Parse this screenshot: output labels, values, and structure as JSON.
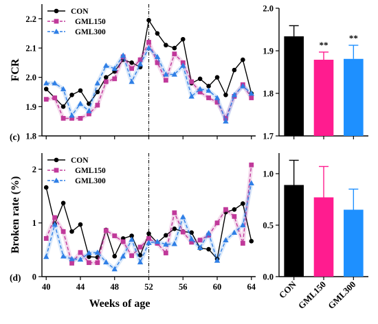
{
  "figure": {
    "x_axis_title": "Weeks of age",
    "marker_line_week": 52
  },
  "chart_data": [
    {
      "id": "fcr-line",
      "type": "line",
      "panel_label": "(c)",
      "ylabel": "FCR",
      "xlabel": "",
      "xlim": [
        39.5,
        64.5
      ],
      "ylim": [
        1.8,
        2.25
      ],
      "yticks": [
        1.8,
        1.9,
        2.0,
        2.1,
        2.2
      ],
      "ytick_labels": [
        "1.8",
        "1.9",
        "2.0",
        "2.1",
        "2.2"
      ],
      "xticks": [
        40,
        44,
        48,
        52,
        56,
        60,
        64
      ],
      "xtick_labels": [
        "",
        "",
        "",
        "",
        "",
        "",
        ""
      ],
      "grid": false,
      "legend_position": "top-left",
      "x": [
        40,
        41,
        42,
        43,
        44,
        45,
        46,
        47,
        48,
        49,
        50,
        51,
        52,
        53,
        54,
        55,
        56,
        57,
        58,
        59,
        60,
        61,
        62,
        63,
        64
      ],
      "series": [
        {
          "name": "CON",
          "color": "#000000",
          "marker": "circle",
          "dash": "solid",
          "values": [
            1.96,
            1.93,
            1.9,
            1.94,
            1.955,
            1.91,
            1.95,
            2.0,
            2.02,
            2.06,
            2.05,
            2.035,
            2.195,
            2.15,
            2.11,
            2.1,
            2.13,
            1.98,
            1.995,
            1.97,
            2.0,
            1.94,
            2.025,
            2.06,
            1.945
          ]
        },
        {
          "name": "GML150",
          "color": "#c0399a",
          "marker": "square",
          "dash": "dashed",
          "values": [
            1.925,
            1.93,
            1.86,
            1.86,
            1.86,
            1.875,
            1.905,
            1.985,
            1.995,
            2.07,
            2.03,
            2.06,
            2.12,
            2.05,
            1.99,
            2.08,
            2.05,
            1.985,
            1.95,
            1.93,
            1.915,
            1.86,
            1.935,
            1.975,
            1.93
          ]
        },
        {
          "name": "GML300",
          "color": "#2f7fe6",
          "marker": "triangle",
          "dash": "dashed",
          "values": [
            1.98,
            1.98,
            1.96,
            1.87,
            1.91,
            1.885,
            1.98,
            2.04,
            2.03,
            2.075,
            1.985,
            2.045,
            2.1,
            2.07,
            2.01,
            2.01,
            2.04,
            1.935,
            1.96,
            1.955,
            1.93,
            1.85,
            1.94,
            1.97,
            1.945
          ]
        }
      ]
    },
    {
      "id": "fcr-bar",
      "type": "bar",
      "ylabel": "",
      "ylim": [
        1.7,
        2.0
      ],
      "yticks": [
        1.7,
        1.8,
        1.9,
        2.0
      ],
      "ytick_labels": [
        "1.7",
        "1.8",
        "1.9",
        "2.0"
      ],
      "categories": [
        "CON",
        "GML150",
        "GML300"
      ],
      "values": [
        1.934,
        1.879,
        1.881
      ],
      "errors": [
        0.025,
        0.018,
        0.032
      ],
      "colors": [
        "#000000",
        "#ff1c8f",
        "#1e90ff"
      ],
      "annotations": [
        "",
        "**",
        "**"
      ],
      "show_category_labels": false
    },
    {
      "id": "broken-line",
      "type": "line",
      "panel_label": "(d)",
      "ylabel": "Broken rate (%)",
      "xlabel": "Weeks of age",
      "xlim": [
        39.5,
        64.5
      ],
      "ylim": [
        0,
        2.3
      ],
      "yticks": [
        0,
        1,
        2
      ],
      "ytick_labels": [
        "0",
        "1",
        "2"
      ],
      "xticks": [
        40,
        44,
        48,
        52,
        56,
        60,
        64
      ],
      "xtick_labels": [
        "40",
        "44",
        "48",
        "52",
        "56",
        "60",
        "64"
      ],
      "grid": false,
      "legend_position": "top-left",
      "x": [
        40,
        41,
        42,
        43,
        44,
        45,
        46,
        47,
        48,
        49,
        50,
        51,
        52,
        53,
        54,
        55,
        56,
        57,
        58,
        59,
        60,
        61,
        62,
        63,
        64
      ],
      "series": [
        {
          "name": "CON",
          "color": "#000000",
          "marker": "circle",
          "dash": "solid",
          "values": [
            1.66,
            0.98,
            1.37,
            0.84,
            0.97,
            0.37,
            0.36,
            0.87,
            0.38,
            0.71,
            0.76,
            0.4,
            0.8,
            0.63,
            0.77,
            0.89,
            0.84,
            0.82,
            0.53,
            0.51,
            0.33,
            1.2,
            1.25,
            1.36,
            0.66
          ]
        },
        {
          "name": "GML150",
          "color": "#c0399a",
          "marker": "square",
          "dash": "dashed",
          "values": [
            0.71,
            1.1,
            0.84,
            0.25,
            0.45,
            0.26,
            0.26,
            0.86,
            0.76,
            0.65,
            0.39,
            0.55,
            0.71,
            0.62,
            0.44,
            1.19,
            0.83,
            0.64,
            0.68,
            0.77,
            1.0,
            1.25,
            1.12,
            0.62,
            2.08
          ]
        },
        {
          "name": "GML300",
          "color": "#2f7fe6",
          "marker": "triangle",
          "dash": "dashed",
          "values": [
            0.37,
            0.97,
            0.38,
            0.33,
            0.32,
            0.44,
            0.45,
            0.27,
            0.14,
            0.38,
            0.69,
            0.27,
            0.63,
            0.65,
            0.6,
            0.61,
            1.11,
            0.7,
            0.54,
            0.81,
            0.3,
            0.68,
            0.82,
            0.96,
            1.74
          ]
        }
      ]
    },
    {
      "id": "broken-bar",
      "type": "bar",
      "ylabel": "",
      "ylim": [
        0,
        1.2
      ],
      "yticks": [
        0,
        0.5,
        1.0
      ],
      "ytick_labels": [
        "0.0",
        "0.5",
        "1.0"
      ],
      "categories": [
        "CON",
        "GML150",
        "GML300"
      ],
      "values": [
        0.89,
        0.77,
        0.65
      ],
      "errors": [
        0.24,
        0.3,
        0.2
      ],
      "colors": [
        "#000000",
        "#ff1c8f",
        "#1e90ff"
      ],
      "annotations": [
        "",
        "",
        ""
      ],
      "show_category_labels": true
    }
  ]
}
